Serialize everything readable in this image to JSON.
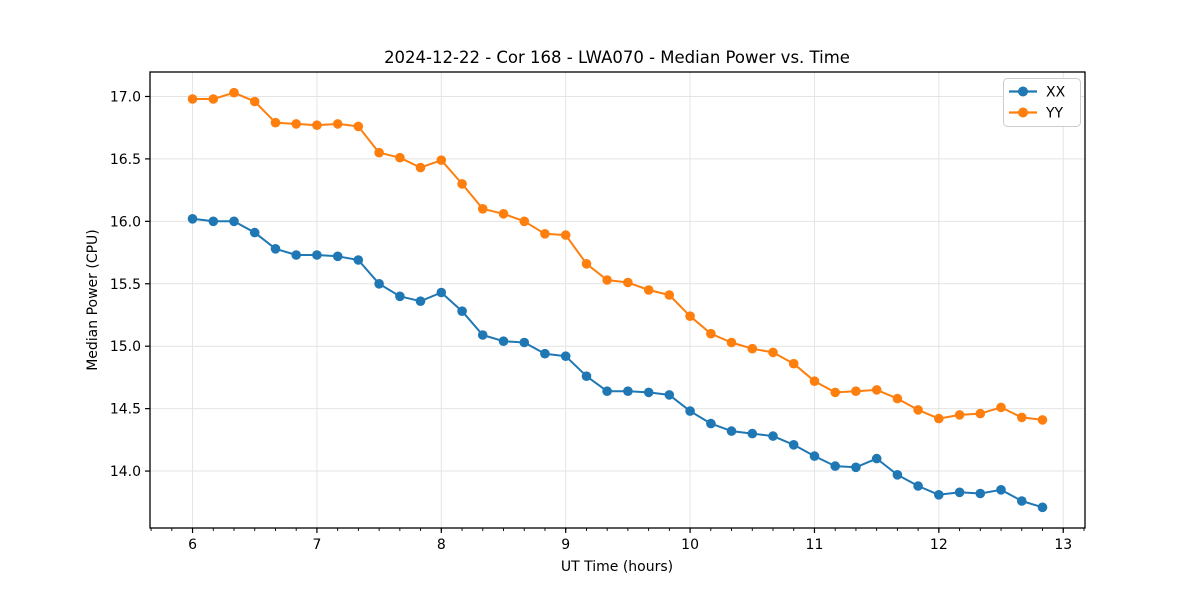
{
  "figure": {
    "title": "2024-12-22 - Cor 168 - LWA070 - Median Power vs. Time"
  },
  "chart_data": {
    "type": "line",
    "title": "2024-12-22 - Cor 168 - LWA070 - Median Power vs. Time",
    "xlabel": "UT Time (hours)",
    "ylabel": "Median Power (CPU)",
    "x": [
      6.0,
      6.167,
      6.333,
      6.5,
      6.667,
      6.833,
      7.0,
      7.167,
      7.333,
      7.5,
      7.667,
      7.833,
      8.0,
      8.167,
      8.333,
      8.5,
      8.667,
      8.833,
      9.0,
      9.167,
      9.333,
      9.5,
      9.667,
      9.833,
      10.0,
      10.167,
      10.333,
      10.5,
      10.667,
      10.833,
      11.0,
      11.167,
      11.333,
      11.5,
      11.667,
      11.833,
      12.0,
      12.167,
      12.333,
      12.5,
      12.667,
      12.833
    ],
    "series": [
      {
        "name": "XX",
        "color": "#1f77b4",
        "values": [
          16.02,
          16.0,
          16.0,
          15.91,
          15.78,
          15.73,
          15.73,
          15.72,
          15.69,
          15.5,
          15.4,
          15.36,
          15.43,
          15.28,
          15.09,
          15.04,
          15.03,
          14.94,
          14.92,
          14.76,
          14.64,
          14.64,
          14.63,
          14.61,
          14.48,
          14.38,
          14.32,
          14.3,
          14.28,
          14.21,
          14.12,
          14.04,
          14.03,
          14.1,
          13.97,
          13.88,
          13.81,
          13.83,
          13.82,
          13.85,
          13.76,
          13.71
        ]
      },
      {
        "name": "YY",
        "color": "#ff7f0e",
        "values": [
          16.98,
          16.98,
          17.03,
          16.96,
          16.79,
          16.78,
          16.77,
          16.78,
          16.76,
          16.55,
          16.51,
          16.43,
          16.49,
          16.3,
          16.1,
          16.06,
          16.0,
          15.9,
          15.89,
          15.66,
          15.53,
          15.51,
          15.45,
          15.41,
          15.24,
          15.1,
          15.03,
          14.98,
          14.95,
          14.86,
          14.72,
          14.63,
          14.64,
          14.65,
          14.58,
          14.49,
          14.42,
          14.45,
          14.46,
          14.51,
          14.43,
          14.41
        ]
      }
    ],
    "xlim": [
      5.658,
      13.175
    ],
    "ylim": [
      13.544,
      17.196
    ],
    "xticks": [
      6,
      7,
      8,
      9,
      10,
      11,
      12,
      13
    ],
    "xtick_labels": [
      "6",
      "7",
      "8",
      "9",
      "10",
      "11",
      "12",
      "13"
    ],
    "yticks": [
      14.0,
      14.5,
      15.0,
      15.5,
      16.0,
      16.5,
      17.0
    ],
    "ytick_labels": [
      "14.0",
      "14.5",
      "15.0",
      "15.5",
      "16.0",
      "16.5",
      "17.0"
    ],
    "minor_xtick_step": 0.166667,
    "grid": true,
    "grid_color": "#e4e4e4",
    "spine_color": "#000000",
    "legend": {
      "position": "upper right",
      "entries": [
        "XX",
        "YY"
      ]
    },
    "marker": "circle"
  }
}
